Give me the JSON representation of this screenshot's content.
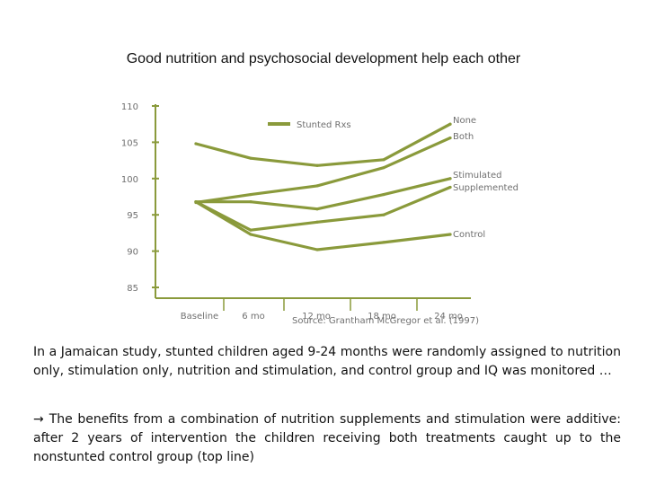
{
  "title": "Good nutrition and psychosocial development help each other",
  "chart_data": {
    "type": "line",
    "categories": [
      "Baseline",
      "6 mo",
      "12 mo",
      "18 mo",
      "24 mo"
    ],
    "ylim": [
      85,
      110
    ],
    "yticks": [
      85,
      90,
      95,
      100,
      105,
      110
    ],
    "legend_label": "Stunted Rxs",
    "series_color": "#8a9a3b",
    "source": "Source: Grantham McGregor et al. (1997)",
    "series": [
      {
        "name": "None",
        "values": [
          104.8,
          102.8,
          101.8,
          102.6,
          107.5
        ]
      },
      {
        "name": "Both",
        "values": [
          96.7,
          97.8,
          99.0,
          101.5,
          105.6
        ]
      },
      {
        "name": "Stimulated",
        "values": [
          96.8,
          96.8,
          95.8,
          97.8,
          100.0
        ]
      },
      {
        "name": "Supplemented",
        "values": [
          96.8,
          92.9,
          94.0,
          95.0,
          98.8
        ]
      },
      {
        "name": "Control",
        "values": [
          96.8,
          92.3,
          90.2,
          91.2,
          92.3
        ]
      }
    ]
  },
  "paragraph1": "In a Jamaican study, stunted children aged 9-24 months were randomly assigned to nutrition only, stimulation only, nutrition and stimulation, and control group and IQ was monitored …",
  "arrow_icon": "→",
  "paragraph2": "The benefits from a combination of nutrition supplements and stimulation were additive: after 2 years of intervention the children receiving both treatments caught up to the nonstunted control group (top line)"
}
